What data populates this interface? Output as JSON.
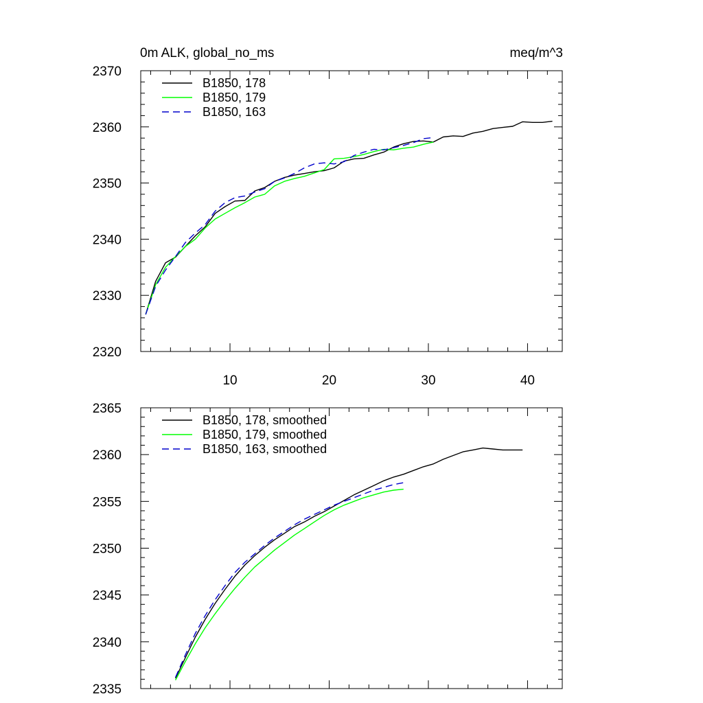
{
  "chart_data": [
    {
      "type": "line",
      "title": "0m ALK, global_no_ms",
      "units": "meq/m^3",
      "xlim": [
        1,
        43.5
      ],
      "ylim": [
        2320,
        2370
      ],
      "x_major_ticks": [
        10,
        20,
        30,
        40
      ],
      "x_tick_labels": [
        "10",
        "20",
        "30",
        "40"
      ],
      "y_major_ticks": [
        2320,
        2330,
        2340,
        2350,
        2360,
        2370
      ],
      "y_tick_labels": [
        "2320",
        "2330",
        "2340",
        "2350",
        "2360",
        "2370"
      ],
      "legend_position": "top-left",
      "series": [
        {
          "name": "B1850, 178",
          "color": "#000000",
          "dash": "solid",
          "x": [
            1.5,
            2.5,
            3.5,
            4.5,
            5.5,
            6.5,
            7.5,
            8.5,
            9.5,
            10.5,
            11.5,
            12.5,
            13.5,
            14.5,
            15.5,
            16.5,
            17.5,
            18.5,
            19.5,
            20.5,
            21.5,
            22.5,
            23.5,
            24.5,
            25.5,
            26.5,
            27.5,
            28.5,
            29.5,
            30.5,
            31.5,
            32.5,
            33.5,
            34.5,
            35.5,
            36.5,
            37.5,
            38.5,
            39.5,
            40.5,
            41.5,
            42.5
          ],
          "y": [
            2326.6,
            2332.5,
            2335.8,
            2336.8,
            2338.7,
            2340.6,
            2342.2,
            2344.6,
            2345.8,
            2346.8,
            2346.9,
            2348.6,
            2349.2,
            2350.3,
            2351.0,
            2351.4,
            2351.7,
            2352.0,
            2352.2,
            2352.7,
            2353.9,
            2354.3,
            2354.4,
            2355.0,
            2355.5,
            2356.4,
            2357.0,
            2357.4,
            2357.5,
            2357.3,
            2358.2,
            2358.4,
            2358.3,
            2358.9,
            2359.2,
            2359.7,
            2359.9,
            2360.1,
            2360.9,
            2360.8,
            2360.8,
            2361.0
          ]
        },
        {
          "name": "B1850, 179",
          "color": "#00ff00",
          "dash": "solid",
          "x": [
            1.5,
            2.5,
            3.5,
            4.5,
            5.5,
            6.5,
            7.5,
            8.5,
            9.5,
            10.5,
            11.5,
            12.5,
            13.5,
            14.5,
            15.5,
            16.5,
            17.5,
            18.5,
            19.5,
            20.5,
            21.5,
            22.5,
            23.5,
            24.5,
            25.5,
            26.5,
            27.5,
            28.5,
            29.5,
            30.5
          ],
          "y": [
            2326.6,
            2331.9,
            2335.0,
            2336.9,
            2338.7,
            2340.0,
            2342.0,
            2343.6,
            2344.6,
            2345.6,
            2346.5,
            2347.5,
            2348.0,
            2349.5,
            2350.3,
            2350.8,
            2351.2,
            2351.8,
            2352.4,
            2354.3,
            2354.4,
            2354.7,
            2355.1,
            2355.6,
            2356.0,
            2355.9,
            2356.2,
            2356.4,
            2356.9,
            2357.3
          ]
        },
        {
          "name": "B1850, 163",
          "color": "#0000cc",
          "dash": "dashed",
          "x": [
            1.5,
            2.5,
            3.5,
            4.5,
            5.5,
            6.5,
            7.5,
            8.5,
            9.5,
            10.5,
            11.5,
            12.5,
            13.5,
            14.5,
            15.5,
            16.5,
            17.5,
            18.5,
            19.5,
            20.5,
            21.5,
            22.5,
            23.5,
            24.5,
            25.5,
            26.5,
            27.5,
            28.5,
            29.5,
            30.5
          ],
          "y": [
            2326.6,
            2331.6,
            2334.5,
            2336.9,
            2339.4,
            2341.1,
            2342.6,
            2345.0,
            2346.5,
            2347.4,
            2347.7,
            2348.4,
            2349.0,
            2350.3,
            2350.9,
            2351.7,
            2352.7,
            2353.4,
            2353.6,
            2353.4,
            2353.8,
            2354.9,
            2355.5,
            2356.0,
            2355.9,
            2356.3,
            2356.7,
            2357.2,
            2357.9,
            2358.1
          ]
        }
      ]
    },
    {
      "type": "line",
      "xlim": [
        1,
        43.5
      ],
      "ylim": [
        2335,
        2365
      ],
      "x_major_ticks": [
        10,
        20,
        30,
        40
      ],
      "y_major_ticks": [
        2335,
        2340,
        2345,
        2350,
        2355,
        2360,
        2365
      ],
      "y_tick_labels": [
        "2335",
        "2340",
        "2345",
        "2350",
        "2355",
        "2360",
        "2365"
      ],
      "legend_position": "top-left",
      "series": [
        {
          "name": "B1850, 178, smoothed",
          "color": "#000000",
          "dash": "solid",
          "x": [
            4.5,
            5.5,
            6.5,
            7.5,
            8.5,
            9.5,
            10.5,
            11.5,
            12.5,
            13.5,
            14.5,
            15.5,
            16.5,
            17.5,
            18.5,
            19.5,
            20.5,
            21.5,
            22.5,
            23.5,
            24.5,
            25.5,
            26.5,
            27.5,
            28.5,
            29.5,
            30.5,
            31.5,
            32.5,
            33.5,
            34.5,
            35.5,
            36.5,
            37.5,
            38.5,
            39.5
          ],
          "y": [
            2336.1,
            2338.3,
            2340.5,
            2342.4,
            2344.1,
            2345.6,
            2347.0,
            2348.2,
            2349.2,
            2350.1,
            2350.9,
            2351.6,
            2352.3,
            2352.8,
            2353.4,
            2353.9,
            2354.5,
            2355.1,
            2355.7,
            2356.2,
            2356.7,
            2357.2,
            2357.6,
            2357.9,
            2358.3,
            2358.7,
            2359.0,
            2359.5,
            2359.9,
            2360.3,
            2360.5,
            2360.7,
            2360.6,
            2360.5,
            2360.5,
            2360.5
          ]
        },
        {
          "name": "B1850, 179, smoothed",
          "color": "#00ff00",
          "dash": "solid",
          "x": [
            4.5,
            5.5,
            6.5,
            7.5,
            8.5,
            9.5,
            10.5,
            11.5,
            12.5,
            13.5,
            14.5,
            15.5,
            16.5,
            17.5,
            18.5,
            19.5,
            20.5,
            21.5,
            22.5,
            23.5,
            24.5,
            25.5,
            26.5,
            27.5
          ],
          "y": [
            2335.9,
            2337.9,
            2339.8,
            2341.5,
            2343.0,
            2344.4,
            2345.7,
            2346.9,
            2348.0,
            2348.9,
            2349.8,
            2350.6,
            2351.4,
            2352.1,
            2352.8,
            2353.5,
            2354.1,
            2354.6,
            2355.0,
            2355.4,
            2355.7,
            2356.0,
            2356.2,
            2356.3
          ]
        },
        {
          "name": "B1850, 163, smoothed",
          "color": "#0000cc",
          "dash": "dashed",
          "x": [
            4.5,
            5.5,
            6.5,
            7.5,
            8.5,
            9.5,
            10.5,
            11.5,
            12.5,
            13.5,
            14.5,
            15.5,
            16.5,
            17.5,
            18.5,
            19.5,
            20.5,
            21.5,
            22.5,
            23.5,
            24.5,
            25.5,
            26.5,
            27.5
          ],
          "y": [
            2336.2,
            2338.6,
            2340.9,
            2342.8,
            2344.5,
            2346.0,
            2347.4,
            2348.5,
            2349.4,
            2350.3,
            2351.1,
            2351.8,
            2352.5,
            2353.1,
            2353.6,
            2354.1,
            2354.6,
            2355.0,
            2355.4,
            2355.8,
            2356.2,
            2356.5,
            2356.8,
            2357.0
          ]
        }
      ]
    }
  ]
}
